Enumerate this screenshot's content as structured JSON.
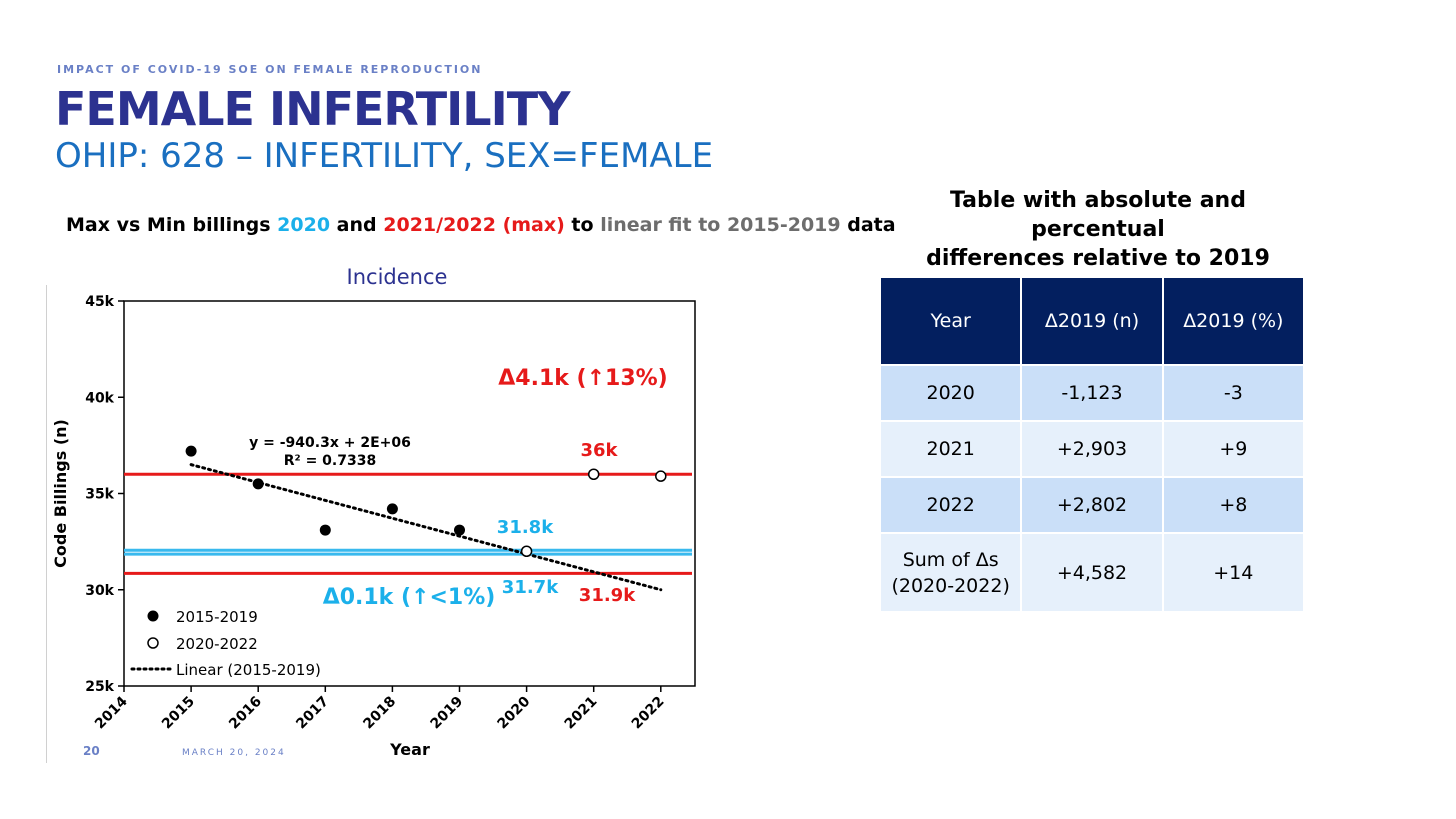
{
  "slide": {
    "kicker": "IMPACT OF COVID-19 SOE ON FEMALE REPRODUCTION",
    "title": "FEMALE INFERTILITY",
    "subtitle": "OHIP: 628 – INFERTILITY, SEX=FEMALE",
    "lead": {
      "part1": "Max vs Min billings ",
      "y2020": "2020",
      "and": " and ",
      "y2122": "2021/2022",
      "max": " (max)",
      "to": " to ",
      "fit": "linear fit to 2015-2019",
      "tail": " data"
    },
    "page_number": "20",
    "date": "MARCH 20, 2024",
    "table_caption_line1": "Table with absolute and percentual",
    "table_caption_line2": "differences relative to 2019"
  },
  "table": {
    "headers": [
      "Year",
      "Δ2019 (n)",
      "Δ2019 (%)"
    ],
    "rows": [
      {
        "year": "2020",
        "abs": "-1,123",
        "pct": "-3"
      },
      {
        "year": "2021",
        "abs": "+2,903",
        "pct": "+9"
      },
      {
        "year": "2022",
        "abs": "+2,802",
        "pct": "+8"
      }
    ],
    "sum_row": {
      "label_line1": "Sum of Δs",
      "label_line2": "(2020-2022)",
      "abs": "+4,582",
      "pct": "+14"
    }
  },
  "chart_data": {
    "type": "scatter",
    "title": "Incidence",
    "xlabel": "Year",
    "ylabel": "Code Billings (n)",
    "xlim": [
      2014,
      2022.5
    ],
    "ylim": [
      25000,
      45000
    ],
    "x_ticks": [
      "2014",
      "2015",
      "2016",
      "2017",
      "2018",
      "2019",
      "2020",
      "2021",
      "2022"
    ],
    "y_ticks": [
      {
        "value": 25000,
        "label": "25k"
      },
      {
        "value": 30000,
        "label": "30k"
      },
      {
        "value": 35000,
        "label": "35k"
      },
      {
        "value": 40000,
        "label": "40k"
      },
      {
        "value": 45000,
        "label": "45k"
      }
    ],
    "series": [
      {
        "name": "2015-2019",
        "marker": "filled",
        "x": [
          2015,
          2016,
          2017,
          2018,
          2019
        ],
        "y": [
          37200,
          35500,
          33100,
          34200,
          33100
        ]
      },
      {
        "name": "2020-2022",
        "marker": "open",
        "x": [
          2020,
          2021,
          2022
        ],
        "y": [
          32000,
          36000,
          35900
        ]
      }
    ],
    "trendline": {
      "name": "Linear (2015-2019)",
      "x": [
        2015,
        2022
      ],
      "y": [
        36500,
        30000
      ]
    },
    "equation": "y = -940.3x + 2E+06",
    "r_squared": "R² = 0.7338",
    "reference_lines": [
      {
        "y": 36000,
        "color": "#e61a1a"
      },
      {
        "y": 30850,
        "color": "#e61a1a"
      },
      {
        "y": 32050,
        "color": "#39b9ee"
      },
      {
        "y": 31850,
        "color": "#39b9ee"
      }
    ],
    "annotations": [
      {
        "text": "Δ4.1k (↑13%)",
        "color": "#e61a1a"
      },
      {
        "text": "36k",
        "color": "#e61a1a"
      },
      {
        "text": "31.8k",
        "color": "#1bb0ea"
      },
      {
        "text": "31.7k",
        "color": "#1bb0ea"
      },
      {
        "text": "31.9k",
        "color": "#e61a1a"
      },
      {
        "text": "Δ0.1k (↑<1%)",
        "color": "#1bb0ea"
      }
    ],
    "legend_position": "bottom-left"
  }
}
